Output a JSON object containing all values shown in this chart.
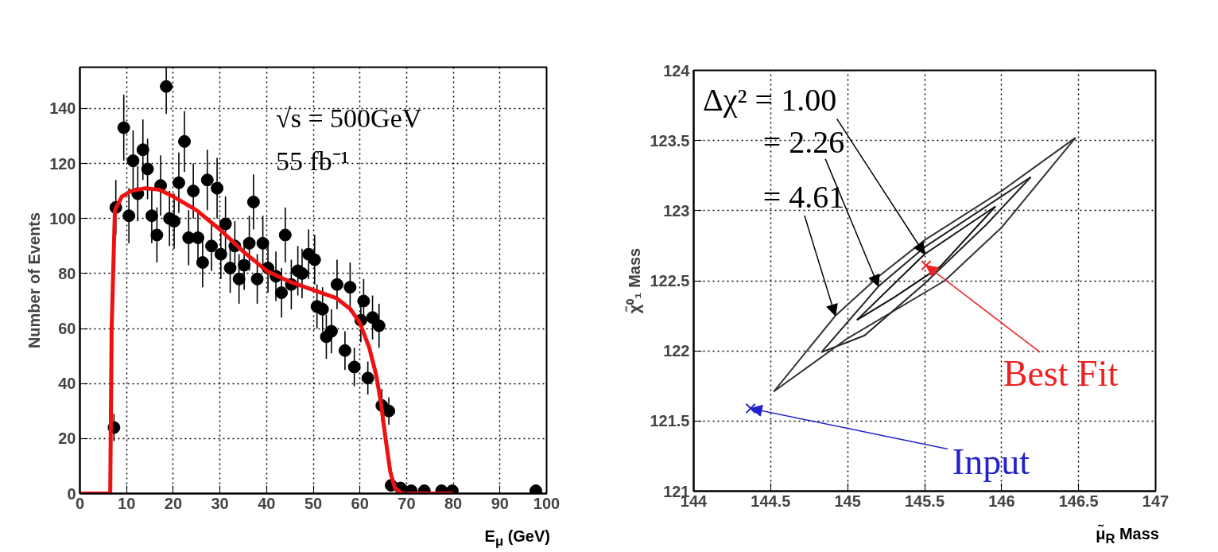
{
  "chart_data": [
    {
      "type": "scatter",
      "xlabel": "E$_{μ}$ (GeV)",
      "ylabel": "Number of Events",
      "xlim": [
        0,
        100
      ],
      "ylim": [
        0,
        155
      ],
      "xticks": [
        0,
        10,
        20,
        30,
        40,
        50,
        60,
        70,
        80,
        90,
        100
      ],
      "yticks": [
        0,
        20,
        40,
        60,
        80,
        100,
        120,
        140
      ],
      "grid": true,
      "annotations": [
        "√s = 500GeV",
        "55 fb⁻¹"
      ],
      "series": [
        {
          "color": "#000000",
          "marker": "circle",
          "x": [
            7.3,
            7.7,
            9.4,
            10.5,
            11.4,
            12.4,
            13.5,
            14.5,
            15.4,
            16.5,
            17.3,
            18.5,
            19.2,
            20.2,
            21.2,
            22.4,
            23.3,
            24.3,
            25.3,
            26.3,
            27.3,
            28.2,
            29.4,
            30.2,
            31.2,
            32.2,
            33.2,
            34.1,
            35.2,
            36.3,
            37.2,
            38.0,
            39.2,
            40.3,
            42.0,
            43.2,
            44.0,
            45.3,
            46.7,
            47.6,
            49.0,
            50.3,
            50.8,
            52.0,
            52.8,
            53.9,
            55.1,
            56.8,
            57.9,
            58.8,
            60.2,
            60.8,
            61.7,
            62.7,
            64.1,
            64.7,
            66.2,
            66.7,
            68.7,
            71.0,
            73.8,
            77.5,
            79.8,
            97.7
          ],
          "values": [
            24,
            104,
            133,
            101,
            121,
            109,
            125,
            118,
            101,
            94,
            112,
            148,
            100,
            99,
            113,
            128,
            93,
            110,
            93,
            84,
            114,
            90,
            111,
            87,
            98,
            82,
            90,
            78,
            83,
            91,
            106,
            78,
            91,
            82,
            79,
            73,
            94,
            76,
            81,
            80,
            87,
            85,
            68,
            67,
            57,
            59,
            76,
            52,
            75,
            46,
            63,
            70,
            42,
            64,
            61,
            32,
            30,
            3,
            2,
            1,
            1,
            1,
            1,
            1
          ],
          "errors": [
            5,
            10,
            12,
            10,
            11,
            10,
            11,
            11,
            10,
            10,
            11,
            [
              138,
              155
            ],
            10,
            10,
            11,
            11,
            10,
            10,
            10,
            9,
            11,
            9,
            11,
            9,
            10,
            9,
            9,
            9,
            9,
            10,
            10,
            9,
            10,
            9,
            9,
            9,
            10,
            9,
            9,
            9,
            9,
            9,
            8,
            8,
            8,
            8,
            9,
            7,
            9,
            7,
            8,
            8,
            6,
            8,
            8,
            6,
            5,
            2,
            1,
            1,
            1,
            1,
            1,
            1
          ]
        },
        {
          "type": "line",
          "line_style": "solid",
          "marker": "none",
          "color": "#ee1111",
          "x": [
            0,
            6.5,
            6.8,
            7.5,
            9,
            11,
            14,
            17,
            20,
            25,
            30,
            35,
            40,
            45,
            50,
            55,
            58,
            60,
            62,
            63.5,
            64.5,
            65.5,
            66.5,
            67.5,
            69,
            72,
            80
          ],
          "values": [
            0,
            0,
            60,
            103,
            108,
            110,
            111,
            110.5,
            108,
            103,
            96,
            88,
            81,
            77,
            74,
            71,
            67,
            62,
            53,
            43,
            33,
            20,
            8,
            2,
            0,
            0,
            0
          ]
        }
      ]
    },
    {
      "type": "line",
      "xlabel": "μ̃$_{R}$ Mass",
      "ylabel": "χ̃⁰₁ Mass",
      "xlim": [
        144,
        147
      ],
      "ylim": [
        121,
        124
      ],
      "xticks": [
        144,
        144.5,
        145,
        145.5,
        146,
        146.5,
        147
      ],
      "yticks": [
        121,
        121.5,
        122,
        122.5,
        123,
        123.5,
        124
      ],
      "grid": true,
      "line_style": "solid",
      "annotations": [
        {
          "text": "Δχ² = 1.00",
          "x": 145.5,
          "y": 122.69
        },
        {
          "text": "= 2.26",
          "x": 145.2,
          "y": 122.46
        },
        {
          "text": "= 4.61",
          "x": 144.92,
          "y": 122.25
        },
        {
          "text": "Best Fit",
          "x": 145.51,
          "y": 122.61
        },
        {
          "text": "Input",
          "x": 144.37,
          "y": 121.59
        }
      ],
      "series": [
        {
          "color": "#111111",
          "x": [
            145.06,
            145.5,
            145.96
          ],
          "values": [
            122.22,
            122.69,
            123.03
          ]
        },
        {
          "color": "#111111",
          "x": [
            145.06,
            145.3,
            145.6,
            145.96
          ],
          "values": [
            122.22,
            122.38,
            122.6,
            123.03
          ]
        },
        {
          "color": "#222222",
          "x": [
            144.83,
            145.2,
            145.5,
            146.19
          ],
          "values": [
            121.99,
            122.46,
            122.74,
            123.24
          ]
        },
        {
          "color": "#222222",
          "x": [
            144.83,
            145.11,
            145.5,
            145.9,
            146.19
          ],
          "values": [
            121.99,
            122.11,
            122.48,
            122.9,
            123.24
          ]
        },
        {
          "color": "#333333",
          "x": [
            144.52,
            144.92,
            145.2,
            145.5,
            146.0,
            146.48
          ],
          "values": [
            121.71,
            122.25,
            122.53,
            122.79,
            123.14,
            123.52
          ]
        },
        {
          "color": "#333333",
          "x": [
            144.52,
            145.0,
            145.63,
            146.0,
            146.48
          ],
          "values": [
            121.71,
            122.09,
            122.5,
            122.88,
            123.52
          ]
        },
        {
          "type": "scatter",
          "marker": "cross",
          "color": "#ee2222",
          "x": [
            145.51
          ],
          "values": [
            122.61
          ]
        },
        {
          "type": "scatter",
          "marker": "cross",
          "color": "#2222cc",
          "x": [
            144.37
          ],
          "values": [
            121.59
          ]
        }
      ]
    }
  ]
}
